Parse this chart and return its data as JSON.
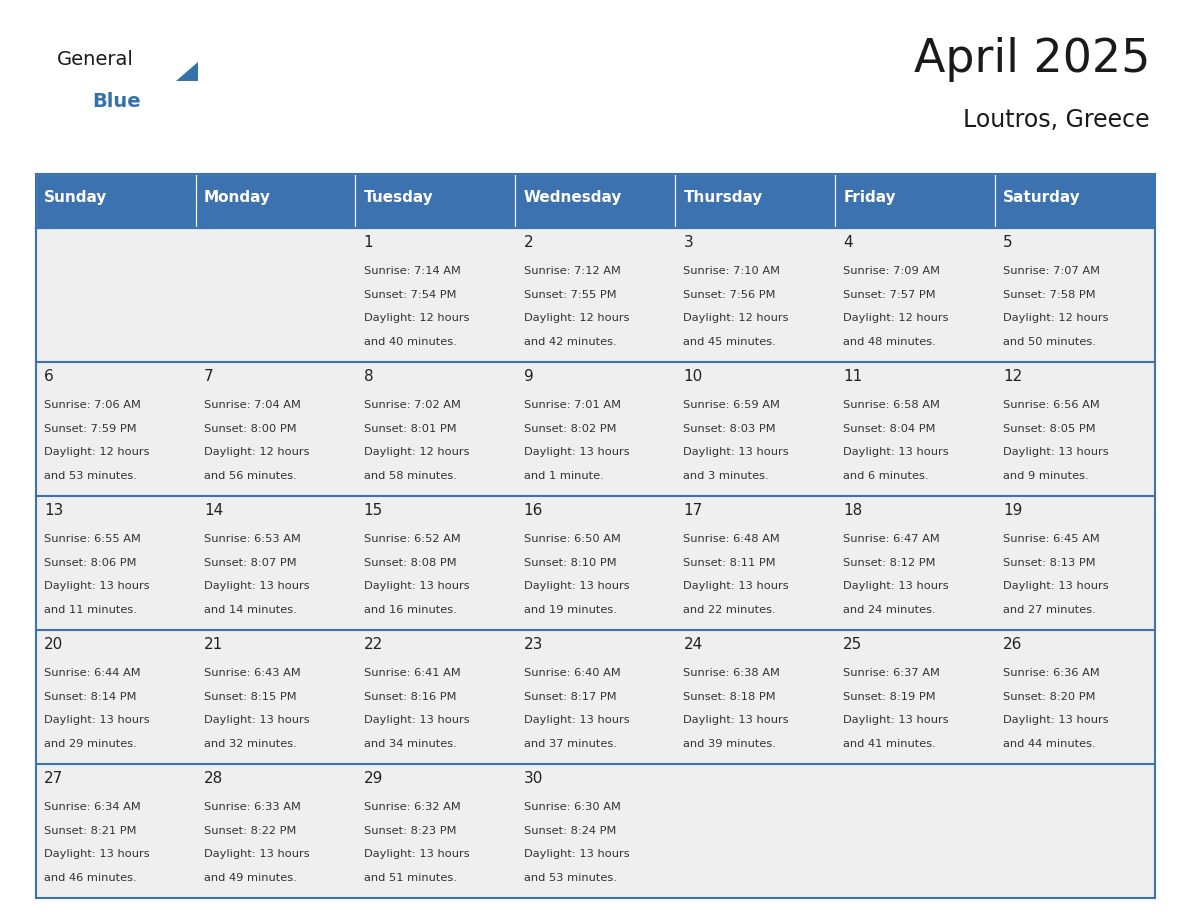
{
  "title": "April 2025",
  "subtitle": "Loutros, Greece",
  "header_bg": "#3d72b0",
  "header_text_color": "#FFFFFF",
  "cell_bg": "#EFEFEF",
  "border_color": "#3d72b0",
  "text_color": "#333333",
  "day_number_color": "#222222",
  "title_color": "#1a1a1a",
  "logo_general_color": "#1a1a1a",
  "logo_blue_color": "#3472ac",
  "logo_triangle_color": "#3472ac",
  "day_headers": [
    "Sunday",
    "Monday",
    "Tuesday",
    "Wednesday",
    "Thursday",
    "Friday",
    "Saturday"
  ],
  "calendar": [
    [
      {
        "day": null,
        "sunrise": null,
        "sunset": null,
        "dl1": null,
        "dl2": null
      },
      {
        "day": null,
        "sunrise": null,
        "sunset": null,
        "dl1": null,
        "dl2": null
      },
      {
        "day": 1,
        "sunrise": "7:14 AM",
        "sunset": "7:54 PM",
        "dl1": "Daylight: 12 hours",
        "dl2": "and 40 minutes."
      },
      {
        "day": 2,
        "sunrise": "7:12 AM",
        "sunset": "7:55 PM",
        "dl1": "Daylight: 12 hours",
        "dl2": "and 42 minutes."
      },
      {
        "day": 3,
        "sunrise": "7:10 AM",
        "sunset": "7:56 PM",
        "dl1": "Daylight: 12 hours",
        "dl2": "and 45 minutes."
      },
      {
        "day": 4,
        "sunrise": "7:09 AM",
        "sunset": "7:57 PM",
        "dl1": "Daylight: 12 hours",
        "dl2": "and 48 minutes."
      },
      {
        "day": 5,
        "sunrise": "7:07 AM",
        "sunset": "7:58 PM",
        "dl1": "Daylight: 12 hours",
        "dl2": "and 50 minutes."
      }
    ],
    [
      {
        "day": 6,
        "sunrise": "7:06 AM",
        "sunset": "7:59 PM",
        "dl1": "Daylight: 12 hours",
        "dl2": "and 53 minutes."
      },
      {
        "day": 7,
        "sunrise": "7:04 AM",
        "sunset": "8:00 PM",
        "dl1": "Daylight: 12 hours",
        "dl2": "and 56 minutes."
      },
      {
        "day": 8,
        "sunrise": "7:02 AM",
        "sunset": "8:01 PM",
        "dl1": "Daylight: 12 hours",
        "dl2": "and 58 minutes."
      },
      {
        "day": 9,
        "sunrise": "7:01 AM",
        "sunset": "8:02 PM",
        "dl1": "Daylight: 13 hours",
        "dl2": "and 1 minute."
      },
      {
        "day": 10,
        "sunrise": "6:59 AM",
        "sunset": "8:03 PM",
        "dl1": "Daylight: 13 hours",
        "dl2": "and 3 minutes."
      },
      {
        "day": 11,
        "sunrise": "6:58 AM",
        "sunset": "8:04 PM",
        "dl1": "Daylight: 13 hours",
        "dl2": "and 6 minutes."
      },
      {
        "day": 12,
        "sunrise": "6:56 AM",
        "sunset": "8:05 PM",
        "dl1": "Daylight: 13 hours",
        "dl2": "and 9 minutes."
      }
    ],
    [
      {
        "day": 13,
        "sunrise": "6:55 AM",
        "sunset": "8:06 PM",
        "dl1": "Daylight: 13 hours",
        "dl2": "and 11 minutes."
      },
      {
        "day": 14,
        "sunrise": "6:53 AM",
        "sunset": "8:07 PM",
        "dl1": "Daylight: 13 hours",
        "dl2": "and 14 minutes."
      },
      {
        "day": 15,
        "sunrise": "6:52 AM",
        "sunset": "8:08 PM",
        "dl1": "Daylight: 13 hours",
        "dl2": "and 16 minutes."
      },
      {
        "day": 16,
        "sunrise": "6:50 AM",
        "sunset": "8:10 PM",
        "dl1": "Daylight: 13 hours",
        "dl2": "and 19 minutes."
      },
      {
        "day": 17,
        "sunrise": "6:48 AM",
        "sunset": "8:11 PM",
        "dl1": "Daylight: 13 hours",
        "dl2": "and 22 minutes."
      },
      {
        "day": 18,
        "sunrise": "6:47 AM",
        "sunset": "8:12 PM",
        "dl1": "Daylight: 13 hours",
        "dl2": "and 24 minutes."
      },
      {
        "day": 19,
        "sunrise": "6:45 AM",
        "sunset": "8:13 PM",
        "dl1": "Daylight: 13 hours",
        "dl2": "and 27 minutes."
      }
    ],
    [
      {
        "day": 20,
        "sunrise": "6:44 AM",
        "sunset": "8:14 PM",
        "dl1": "Daylight: 13 hours",
        "dl2": "and 29 minutes."
      },
      {
        "day": 21,
        "sunrise": "6:43 AM",
        "sunset": "8:15 PM",
        "dl1": "Daylight: 13 hours",
        "dl2": "and 32 minutes."
      },
      {
        "day": 22,
        "sunrise": "6:41 AM",
        "sunset": "8:16 PM",
        "dl1": "Daylight: 13 hours",
        "dl2": "and 34 minutes."
      },
      {
        "day": 23,
        "sunrise": "6:40 AM",
        "sunset": "8:17 PM",
        "dl1": "Daylight: 13 hours",
        "dl2": "and 37 minutes."
      },
      {
        "day": 24,
        "sunrise": "6:38 AM",
        "sunset": "8:18 PM",
        "dl1": "Daylight: 13 hours",
        "dl2": "and 39 minutes."
      },
      {
        "day": 25,
        "sunrise": "6:37 AM",
        "sunset": "8:19 PM",
        "dl1": "Daylight: 13 hours",
        "dl2": "and 41 minutes."
      },
      {
        "day": 26,
        "sunrise": "6:36 AM",
        "sunset": "8:20 PM",
        "dl1": "Daylight: 13 hours",
        "dl2": "and 44 minutes."
      }
    ],
    [
      {
        "day": 27,
        "sunrise": "6:34 AM",
        "sunset": "8:21 PM",
        "dl1": "Daylight: 13 hours",
        "dl2": "and 46 minutes."
      },
      {
        "day": 28,
        "sunrise": "6:33 AM",
        "sunset": "8:22 PM",
        "dl1": "Daylight: 13 hours",
        "dl2": "and 49 minutes."
      },
      {
        "day": 29,
        "sunrise": "6:32 AM",
        "sunset": "8:23 PM",
        "dl1": "Daylight: 13 hours",
        "dl2": "and 51 minutes."
      },
      {
        "day": 30,
        "sunrise": "6:30 AM",
        "sunset": "8:24 PM",
        "dl1": "Daylight: 13 hours",
        "dl2": "and 53 minutes."
      },
      {
        "day": null,
        "sunrise": null,
        "sunset": null,
        "dl1": null,
        "dl2": null
      },
      {
        "day": null,
        "sunrise": null,
        "sunset": null,
        "dl1": null,
        "dl2": null
      },
      {
        "day": null,
        "sunrise": null,
        "sunset": null,
        "dl1": null,
        "dl2": null
      }
    ]
  ]
}
